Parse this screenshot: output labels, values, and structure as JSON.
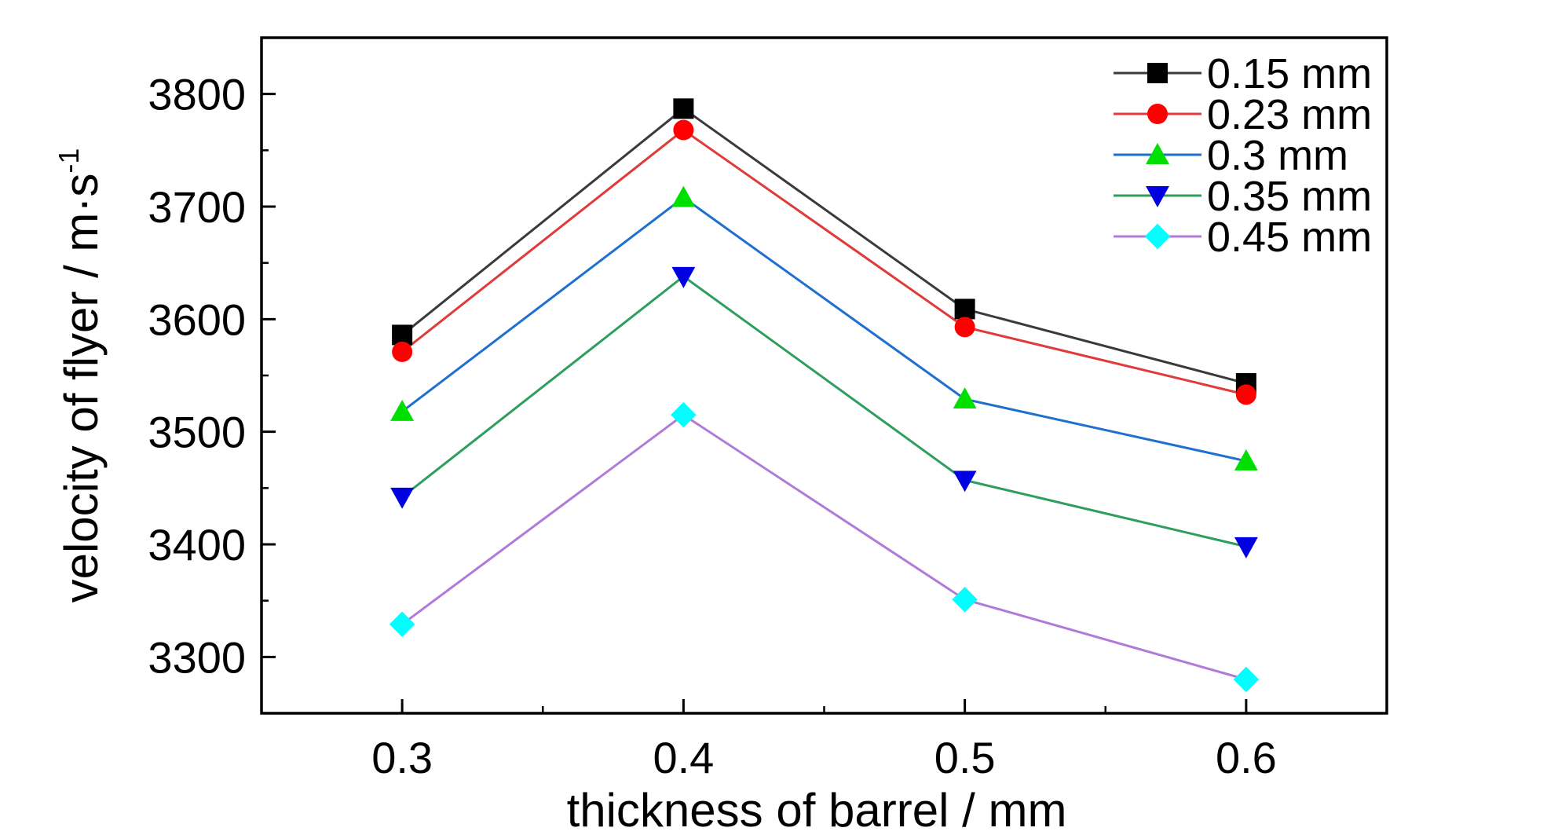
{
  "chart_data": {
    "type": "line",
    "xlabel": "thickness of barrel / mm",
    "ylabel_main": "velocity of flyer / m·s",
    "ylabel_sup": "-1",
    "xlim": [
      0.25,
      0.65
    ],
    "ylim": [
      3250,
      3850
    ],
    "x_ticks": [
      0.3,
      0.4,
      0.5,
      0.6
    ],
    "x_tick_labels": [
      "0.3",
      "0.4",
      "0.5",
      "0.6"
    ],
    "x_minor_ticks": [
      0.35,
      0.45,
      0.55
    ],
    "y_ticks": [
      3300,
      3400,
      3500,
      3600,
      3700,
      3800
    ],
    "y_tick_labels": [
      "3300",
      "3400",
      "3500",
      "3600",
      "3700",
      "3800"
    ],
    "y_minor_ticks": [
      3350,
      3450,
      3550,
      3650,
      3750
    ],
    "x": [
      0.3,
      0.4,
      0.5,
      0.6
    ],
    "legend_position": "top-right",
    "series": [
      {
        "name": "0.15 mm",
        "values": [
          3586,
          3787,
          3609,
          3543
        ],
        "line_color": "#3a3a3a",
        "marker_color": "#000000",
        "marker": "square"
      },
      {
        "name": "0.23 mm",
        "values": [
          3571,
          3768,
          3593,
          3533
        ],
        "line_color": "#e03a3a",
        "marker_color": "#ff0000",
        "marker": "circle"
      },
      {
        "name": "0.3 mm",
        "values": [
          3518,
          3708,
          3529,
          3474
        ],
        "line_color": "#1e6fd0",
        "marker_color": "#00e000",
        "marker": "triangle-up"
      },
      {
        "name": "0.35 mm",
        "values": [
          3442,
          3638,
          3457,
          3398
        ],
        "line_color": "#2e9e5e",
        "marker_color": "#0000e0",
        "marker": "triangle-down"
      },
      {
        "name": "0.45 mm",
        "values": [
          3329,
          3515,
          3351,
          3280
        ],
        "line_color": "#b07ad8",
        "marker_color": "#00ffff",
        "marker": "diamond"
      }
    ]
  }
}
